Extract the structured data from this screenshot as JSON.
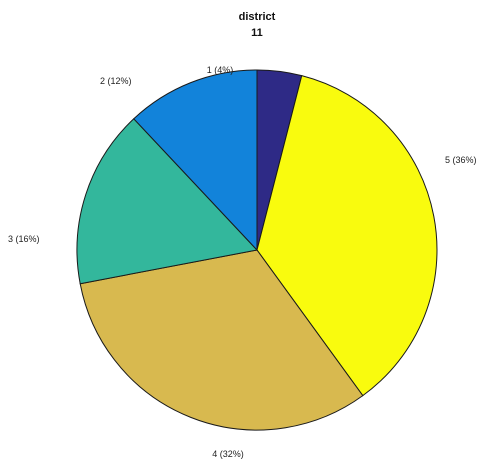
{
  "chart_data": {
    "type": "pie",
    "title_line1": "district",
    "title_line2": "11",
    "slices": [
      {
        "label": "1",
        "value": 4,
        "label_text": "1  (4%)",
        "color": "#2e2a86"
      },
      {
        "label": "5",
        "value": 36,
        "label_text": "5 (36%)",
        "color": "#f9fb0e"
      },
      {
        "label": "4",
        "value": 32,
        "label_text": "4 (32%)",
        "color": "#d8b94f"
      },
      {
        "label": "3",
        "value": 16,
        "label_text": "3 (16%)",
        "color": "#33b79c"
      },
      {
        "label": "2",
        "value": 12,
        "label_text": "2 (12%)",
        "color": "#1283da"
      }
    ]
  }
}
